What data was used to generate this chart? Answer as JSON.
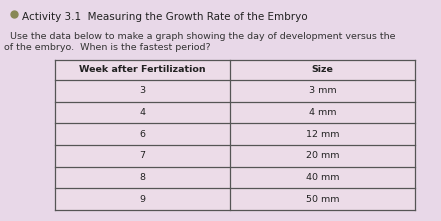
{
  "title": "Activity 3.1  Measuring the Growth Rate of the Embryo",
  "subtitle_line1": "Use the data below to make a graph showing the day of development versus the",
  "subtitle_line2": "of the embryo.  When is the fastest period?",
  "col1_header": "Week after Fertilization",
  "col2_header": "Size",
  "rows": [
    [
      "3",
      "3 mm"
    ],
    [
      "4",
      "4 mm"
    ],
    [
      "6",
      "12 mm"
    ],
    [
      "7",
      "20 mm"
    ],
    [
      "8",
      "40 mm"
    ],
    [
      "9",
      "50 mm"
    ]
  ],
  "bg_color": "#e8d8e8",
  "table_bg": "#ecdce8",
  "border_color": "#555555",
  "title_fontsize": 7.5,
  "subtitle_fontsize": 6.8,
  "header_fontsize": 6.8,
  "cell_fontsize": 6.8
}
